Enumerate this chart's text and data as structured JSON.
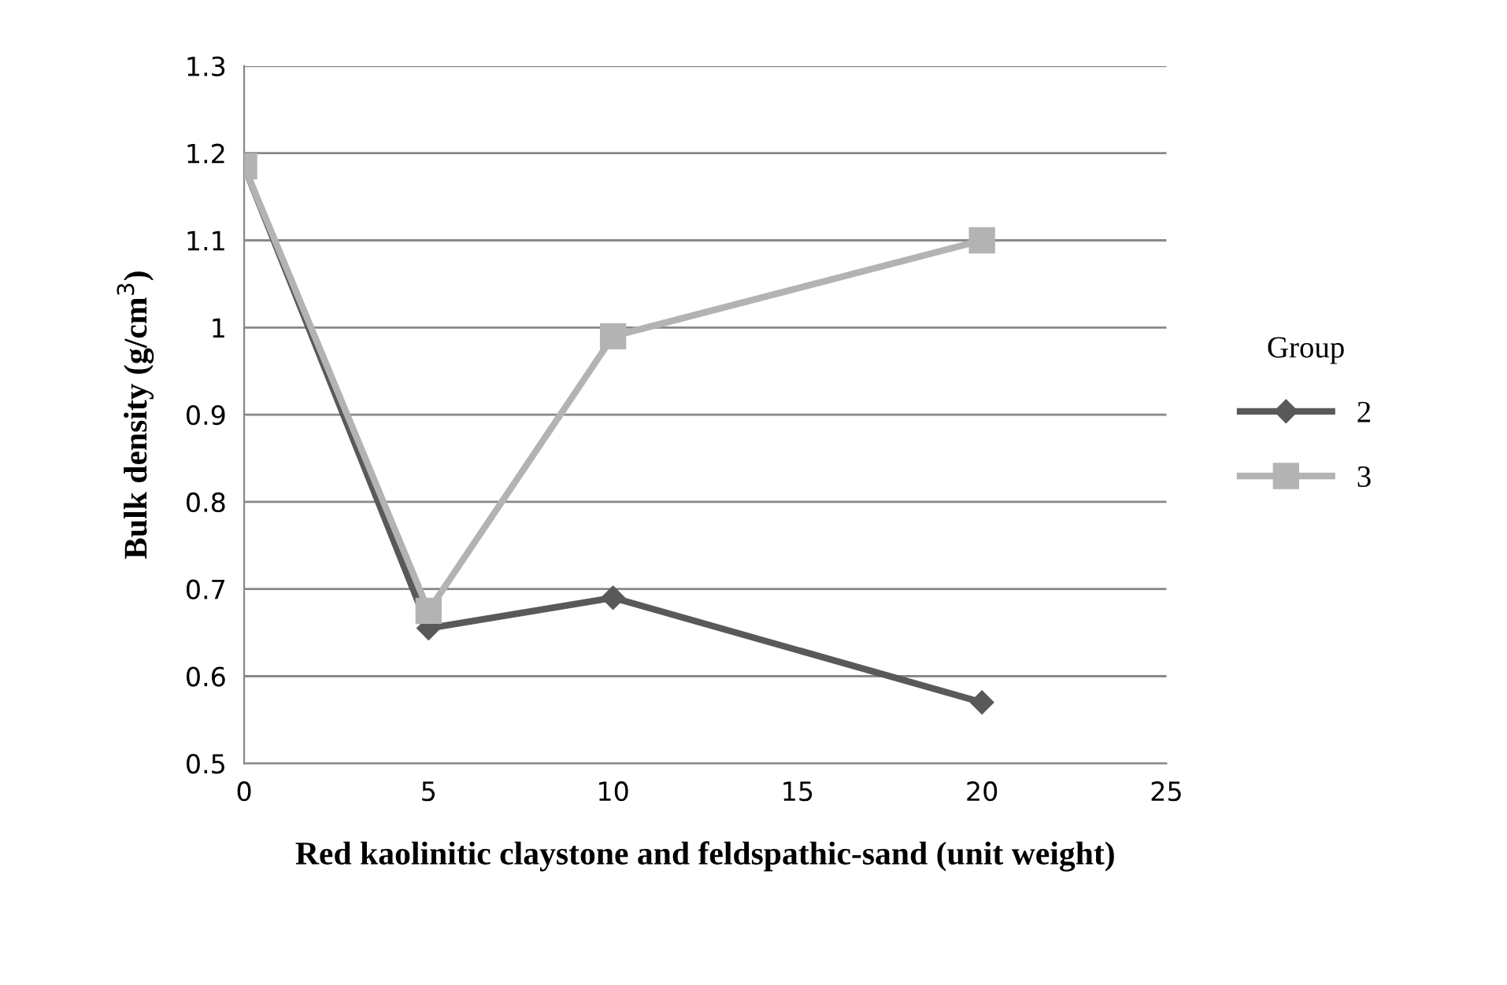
{
  "chart_data": {
    "type": "line",
    "xlabel": "Red kaolinitic claystone and feldspathic-sand (unit weight)",
    "ylabel": "Bulk density (g/cm$^{3}$)",
    "legend_title": "Group",
    "x": [
      0,
      5,
      10,
      20
    ],
    "series": [
      {
        "name": "2",
        "color": "#595959",
        "marker": "diamond",
        "values": [
          1.185,
          0.655,
          0.69,
          0.57
        ]
      },
      {
        "name": "3",
        "color": "#b3b3b3",
        "marker": "square",
        "values": [
          1.185,
          0.675,
          0.99,
          1.1
        ]
      }
    ],
    "xlim": [
      0,
      25
    ],
    "xticks": [
      0,
      5,
      10,
      15,
      20,
      25
    ],
    "ylim": [
      0.5,
      1.3
    ],
    "yticks": [
      0.5,
      0.6,
      0.7,
      0.8,
      0.9,
      1,
      1.1,
      1.2,
      1.3
    ],
    "grid": "y",
    "legend": "right",
    "line_style": "solid"
  }
}
